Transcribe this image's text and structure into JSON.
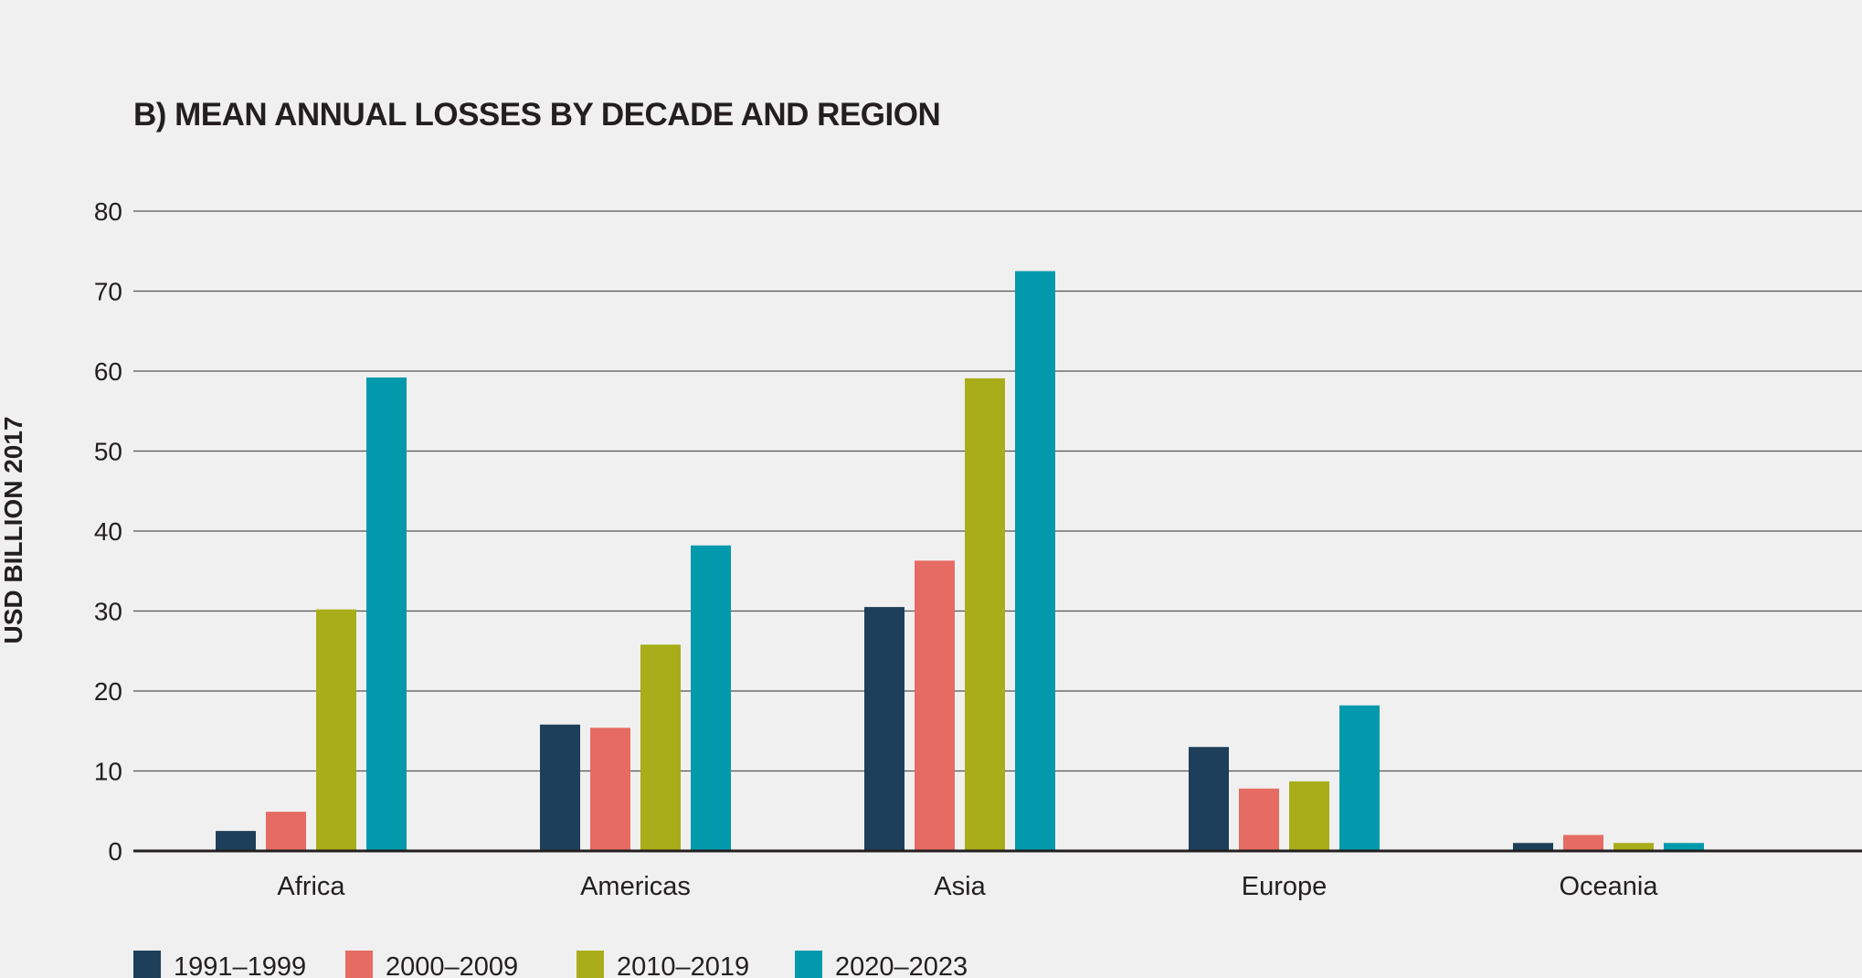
{
  "chart_data": {
    "type": "bar",
    "title": "B) MEAN ANNUAL LOSSES BY DECADE AND REGION",
    "xlabel": "",
    "ylabel": "USD BILLION 2017",
    "ylim": [
      0,
      80
    ],
    "yticks": [
      0,
      10,
      20,
      30,
      40,
      50,
      60,
      70,
      80
    ],
    "grid": true,
    "legend_position": "bottom-left",
    "categories": [
      "Africa",
      "Americas",
      "Asia",
      "Europe",
      "Oceania"
    ],
    "series": [
      {
        "name": "1991–1999",
        "color": "#1d3f5a",
        "values": [
          2.5,
          15.8,
          30.5,
          13.0,
          1.0
        ]
      },
      {
        "name": "2000–2009",
        "color": "#e56b63",
        "values": [
          4.9,
          15.4,
          36.3,
          7.8,
          2.0
        ]
      },
      {
        "name": "2010–2019",
        "color": "#a9ad19",
        "values": [
          30.2,
          25.8,
          59.1,
          8.7,
          1.0
        ]
      },
      {
        "name": "2020–2023",
        "color": "#0299ad",
        "values": [
          59.2,
          38.2,
          72.5,
          18.2,
          1.0
        ]
      }
    ]
  }
}
